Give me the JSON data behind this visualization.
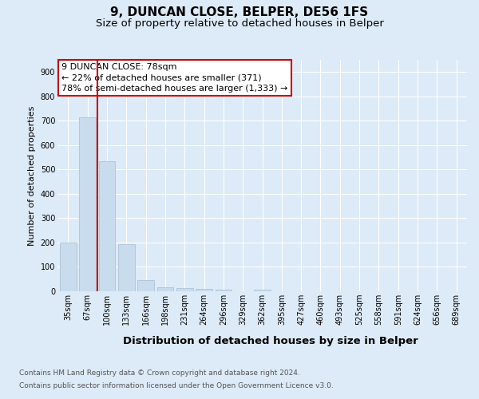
{
  "title": "9, DUNCAN CLOSE, BELPER, DE56 1FS",
  "subtitle": "Size of property relative to detached houses in Belper",
  "xlabel": "Distribution of detached houses by size in Belper",
  "ylabel": "Number of detached properties",
  "categories": [
    "35sqm",
    "67sqm",
    "100sqm",
    "133sqm",
    "166sqm",
    "198sqm",
    "231sqm",
    "264sqm",
    "296sqm",
    "329sqm",
    "362sqm",
    "395sqm",
    "427sqm",
    "460sqm",
    "493sqm",
    "525sqm",
    "558sqm",
    "591sqm",
    "624sqm",
    "656sqm",
    "689sqm"
  ],
  "values": [
    200,
    714,
    535,
    192,
    45,
    17,
    12,
    10,
    8,
    0,
    7,
    0,
    0,
    0,
    0,
    0,
    0,
    0,
    0,
    0,
    0
  ],
  "bar_color": "#c8dcee",
  "bar_edge_color": "#aabccc",
  "vline_color": "#cc0000",
  "vline_pos": 1.5,
  "annotation_text": "9 DUNCAN CLOSE: 78sqm\n← 22% of detached houses are smaller (371)\n78% of semi-detached houses are larger (1,333) →",
  "annotation_box_facecolor": "#ffffff",
  "annotation_box_edgecolor": "#cc0000",
  "ylim": [
    0,
    950
  ],
  "yticks": [
    0,
    100,
    200,
    300,
    400,
    500,
    600,
    700,
    800,
    900
  ],
  "footnote_line1": "Contains HM Land Registry data © Crown copyright and database right 2024.",
  "footnote_line2": "Contains public sector information licensed under the Open Government Licence v3.0.",
  "bg_color": "#ddeaf7",
  "grid_color": "#ffffff",
  "title_fontsize": 11,
  "subtitle_fontsize": 9.5,
  "xlabel_fontsize": 9.5,
  "ylabel_fontsize": 8,
  "tick_fontsize": 7,
  "annotation_fontsize": 8,
  "footnote_fontsize": 6.5
}
